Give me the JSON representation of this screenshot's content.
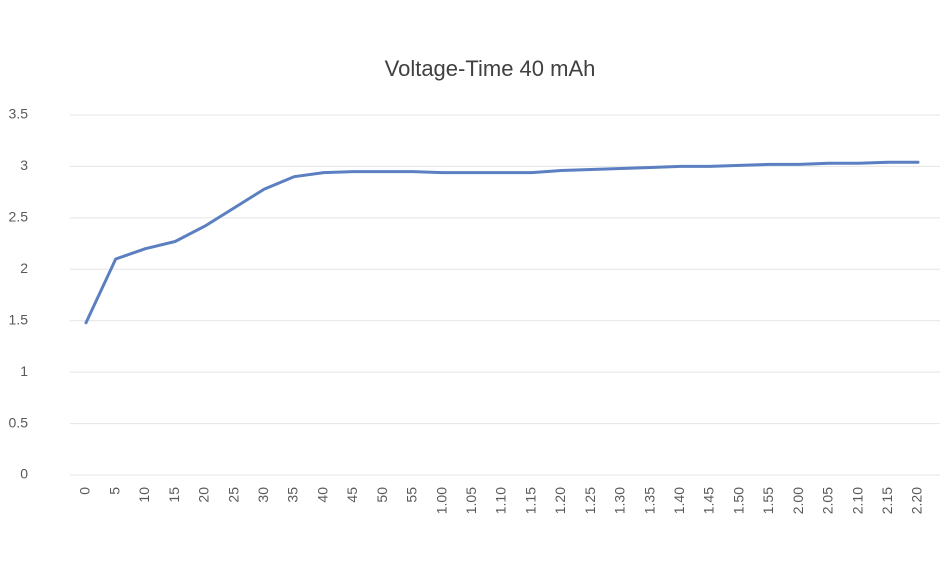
{
  "chart_data": {
    "type": "line",
    "title": "Voltage-Time 40 mAh",
    "categories": [
      "0",
      "5",
      "10",
      "15",
      "20",
      "25",
      "30",
      "35",
      "40",
      "45",
      "50",
      "55",
      "1.00",
      "1.05",
      "1.10",
      "1.15",
      "1.20",
      "1.25",
      "1.30",
      "1.35",
      "1.40",
      "1.45",
      "1.50",
      "1.55",
      "2.00",
      "2.05",
      "2.10",
      "2.15",
      "2.20"
    ],
    "values": [
      1.48,
      2.1,
      2.2,
      2.27,
      2.42,
      2.6,
      2.78,
      2.9,
      2.94,
      2.95,
      2.95,
      2.95,
      2.94,
      2.94,
      2.94,
      2.94,
      2.96,
      2.97,
      2.98,
      2.99,
      3.0,
      3.0,
      3.01,
      3.02,
      3.02,
      3.03,
      3.03,
      3.04,
      3.04
    ],
    "color": "#5b7fc0",
    "ylim": [
      0,
      3.5
    ],
    "yticks": [
      0,
      0.5,
      1,
      1.5,
      2,
      2.5,
      3,
      3.5
    ],
    "grid": true
  }
}
